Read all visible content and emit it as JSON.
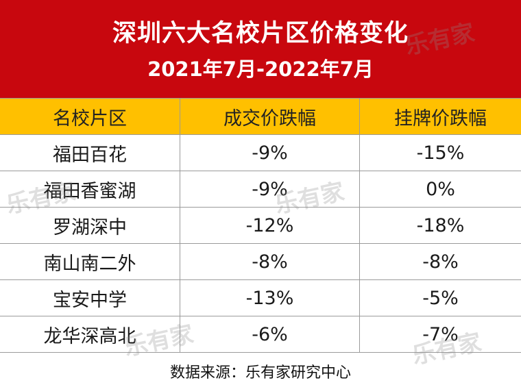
{
  "header": {
    "title": "深圳六大名校片区价格变化",
    "subtitle": "2021年7月-2022年7月"
  },
  "table": {
    "columns": [
      "名校片区",
      "成交价跌幅",
      "挂牌价跌幅"
    ],
    "rows": [
      [
        "福田百花",
        "-9%",
        "-15%"
      ],
      [
        "福田香蜜湖",
        "-9%",
        "0%"
      ],
      [
        "罗湖深中",
        "-12%",
        "-18%"
      ],
      [
        "南山南二外",
        "-8%",
        "-8%"
      ],
      [
        "宝安中学",
        "-13%",
        "-5%"
      ],
      [
        "龙华深高北",
        "-6%",
        "-7%"
      ]
    ]
  },
  "footer": {
    "source": "数据来源：乐有家研究中心"
  },
  "watermark": {
    "text": "乐有家"
  },
  "colors": {
    "header_bg": "#c8070e",
    "column_header_bg": "#ffc000"
  }
}
